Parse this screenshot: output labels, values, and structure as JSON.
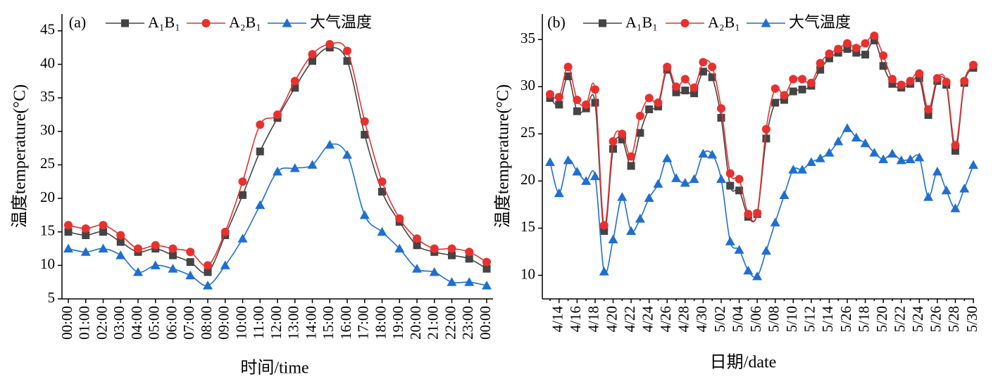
{
  "chart_data": [
    {
      "type": "line",
      "label": "(a)",
      "x_label": "时间/time",
      "y_label": "温度temperature(°C)",
      "categories": [
        "00:00",
        "01:00",
        "02:00",
        "03:00",
        "04:00",
        "05:00",
        "06:00",
        "07:00",
        "08:00",
        "09:00",
        "10:00",
        "11:00",
        "12:00",
        "13:00",
        "14:00",
        "15:00",
        "16:00",
        "17:00",
        "18:00",
        "19:00",
        "20:00",
        "21:00",
        "22:00",
        "23:00",
        "00:00"
      ],
      "ylim": [
        5,
        47.5
      ],
      "yticks": [
        5,
        10,
        15,
        20,
        25,
        30,
        35,
        40,
        45
      ],
      "series": [
        {
          "name": "A₁B₁",
          "color": "#444444",
          "marker": "square",
          "values": [
            15,
            14.5,
            15,
            13.5,
            12,
            12.5,
            11.5,
            10.5,
            9,
            14.5,
            20.5,
            27,
            32,
            36.5,
            40.5,
            42.5,
            40.5,
            29.5,
            21,
            16.5,
            13,
            12,
            11.5,
            11,
            9.5
          ]
        },
        {
          "name": "A₂B₁",
          "color": "#e8312f",
          "marker": "circle",
          "values": [
            16,
            15.5,
            16,
            14.5,
            12.5,
            13,
            12.5,
            12,
            10,
            15,
            22.5,
            31,
            32.5,
            37.5,
            41.5,
            43,
            42,
            31.5,
            22.5,
            17,
            14,
            12.5,
            12.5,
            12,
            10.5
          ]
        },
        {
          "name": "大气温度",
          "color": "#1f6fd1",
          "marker": "triangle",
          "values": [
            12.5,
            12,
            12.5,
            11.5,
            9,
            10,
            9.5,
            8.5,
            7,
            10,
            14,
            19,
            24,
            24.5,
            25,
            28,
            26.5,
            17.5,
            15,
            12.5,
            9.5,
            9,
            7.5,
            7.5,
            7
          ]
        }
      ]
    },
    {
      "type": "line",
      "label": "(b)",
      "x_label": "日期/date",
      "y_label": "温度temperature(°C)",
      "categories": [
        null,
        "4/14",
        null,
        "4/16",
        null,
        "4/18",
        null,
        "4/20",
        null,
        "4/22",
        null,
        "4/24",
        null,
        "4/26",
        null,
        "4/28",
        null,
        "4/30",
        null,
        "5/02",
        null,
        "5/04",
        null,
        "5/06",
        null,
        "5/08",
        null,
        "5/10",
        null,
        "5/12",
        null,
        "5/14",
        null,
        "5/26",
        null,
        "5/18",
        null,
        "5/20",
        null,
        "5/22",
        null,
        "5/24",
        null,
        "5/26",
        null,
        "5/28",
        null,
        "5/30"
      ],
      "ylim": [
        7.5,
        37.7
      ],
      "yticks": [
        10,
        15,
        20,
        25,
        30,
        35
      ],
      "series": [
        {
          "name": "A₁B₁",
          "color": "#444444",
          "marker": "square",
          "values": [
            28.8,
            28.1,
            31.1,
            27.4,
            27.7,
            28.3,
            14.7,
            23.4,
            24.4,
            21.6,
            25.1,
            27.6,
            27.9,
            31.8,
            29.4,
            29.6,
            29.3,
            31.6,
            31,
            26.7,
            19.5,
            19,
            16.2,
            16.5,
            24.5,
            28.3,
            28.6,
            29.5,
            29.7,
            30.1,
            31.8,
            33,
            33.6,
            34,
            33.6,
            33.4,
            34.9,
            32.2,
            30.3,
            29.9,
            30.3,
            30.9,
            27,
            30.6,
            30.2,
            23.2,
            30.4,
            32
          ]
        },
        {
          "name": "A₂B₁",
          "color": "#e8312f",
          "marker": "circle",
          "values": [
            29.2,
            28.9,
            32.1,
            28.6,
            28.1,
            29.7,
            15.3,
            24.2,
            25,
            22.6,
            26.9,
            28.8,
            28.3,
            32.1,
            30,
            30.8,
            29.9,
            32.6,
            32.1,
            27.7,
            20.8,
            20.2,
            16.5,
            16.6,
            25.5,
            29.8,
            29.1,
            30.8,
            30.8,
            30.4,
            32.5,
            33.5,
            34,
            34.6,
            34.1,
            34.6,
            35.4,
            33.3,
            30.8,
            30.2,
            30.6,
            31.4,
            27.6,
            30.9,
            30.5,
            23.8,
            30.6,
            32.3
          ]
        },
        {
          "name": "大气温度",
          "color": "#1f6fd1",
          "marker": "triangle",
          "values": [
            22,
            18.7,
            22.2,
            21,
            20,
            20.5,
            10.4,
            13.8,
            18.3,
            14.7,
            16,
            18.2,
            19.7,
            22.4,
            20.3,
            19.8,
            20.2,
            22.9,
            22.8,
            20.2,
            13.6,
            12.7,
            10.5,
            9.9,
            12.6,
            15.6,
            18.5,
            21.2,
            21.2,
            22,
            22.4,
            23,
            24.2,
            25.6,
            24.6,
            24,
            23,
            22.3,
            22.9,
            22.2,
            22.3,
            22.5,
            18.3,
            21,
            19,
            17.1,
            19.2,
            21.7
          ]
        }
      ]
    }
  ]
}
